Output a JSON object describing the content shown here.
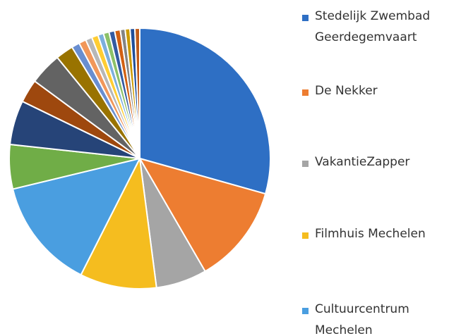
{
  "chart_data": {
    "type": "pie",
    "categories": [
      "Stedelijk Zwembad Geerdegemvaart",
      "De Nekker",
      "VakantieZapper",
      "Filmhuis Mechelen",
      "Cultuurcentrum Mechelen",
      null,
      null,
      null,
      null,
      null,
      null,
      null,
      null,
      null,
      null,
      null,
      null,
      null,
      null,
      null,
      null,
      null
    ],
    "values": [
      29.4,
      12.3,
      6.3,
      9.5,
      13.8,
      5.5,
      5.5,
      2.9,
      4.0,
      2.2,
      1.0,
      0.9,
      0.8,
      0.8,
      0.7,
      0.7,
      0.7,
      0.7,
      0.6,
      0.6,
      0.6,
      0.6
    ],
    "colors": [
      "#2e6fc4",
      "#ed7d31",
      "#a5a5a5",
      "#f5bd1f",
      "#4a9ee0",
      "#70ad47",
      "#264478",
      "#9e480e",
      "#636363",
      "#997300",
      "#698ed0",
      "#f1975a",
      "#b7b7b7",
      "#ffcd33",
      "#7cafdd",
      "#8cc168",
      "#335aa1",
      "#d26012",
      "#848484",
      "#cc9a00",
      "#1f4e99",
      "#bf5a18"
    ]
  }
}
